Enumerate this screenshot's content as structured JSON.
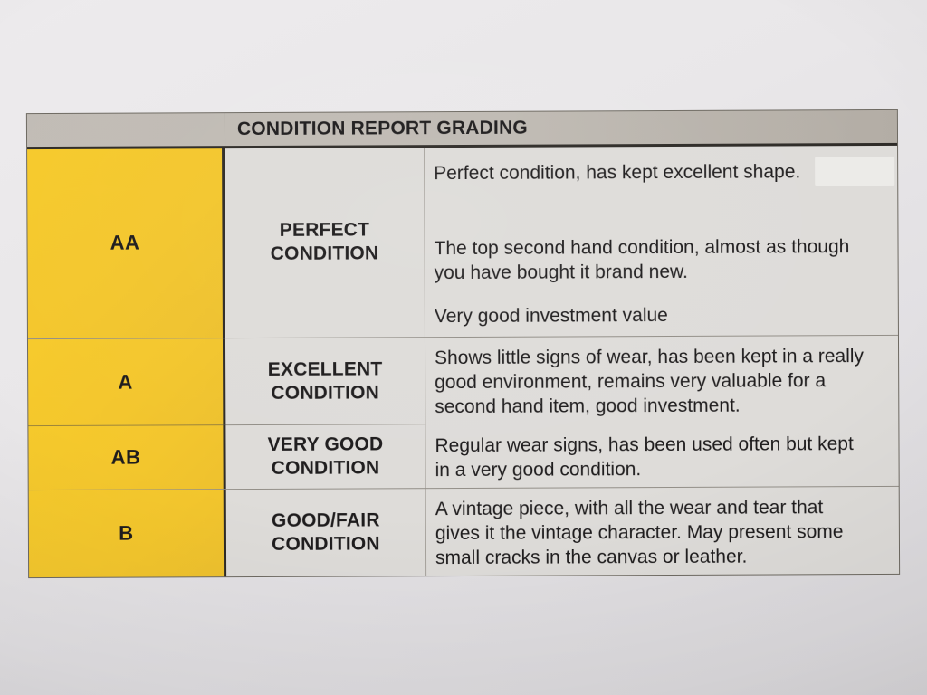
{
  "document": {
    "title": "CONDITION REPORT GRADING",
    "rows": [
      {
        "grade": "AA",
        "label_lines": [
          "PERFECT",
          "CONDITION"
        ],
        "paragraphs": [
          "Perfect condition, has kept excellent shape.",
          "The top second hand condition, almost as though you have bought it brand new.",
          "Very good investment value"
        ]
      },
      {
        "grade": "A",
        "label_lines": [
          "EXCELLENT",
          "CONDITION"
        ],
        "paragraphs": [
          "Shows little signs of wear, has been kept in a really good environment, remains very valuable for a second hand item, good investment."
        ]
      },
      {
        "grade": "AB",
        "label_lines": [
          "VERY GOOD",
          "CONDITION"
        ],
        "paragraphs": [
          "Regular wear signs, has been used often but kept in a very good condition."
        ]
      },
      {
        "grade": "B",
        "label_lines": [
          "GOOD/FAIR",
          "CONDITION"
        ],
        "paragraphs": [
          "A vintage piece, with all the wear and tear that gives it the vintage character. May present some small cracks in the canvas or leather."
        ]
      }
    ],
    "colors": {
      "paper": "#e7e5e8",
      "header_bg": "#bfbab3",
      "grade_bg": "#f4c72d",
      "cell_bg": "#dedcd9",
      "border_dark": "#2e2b27",
      "text": "#1e1c1d"
    }
  }
}
